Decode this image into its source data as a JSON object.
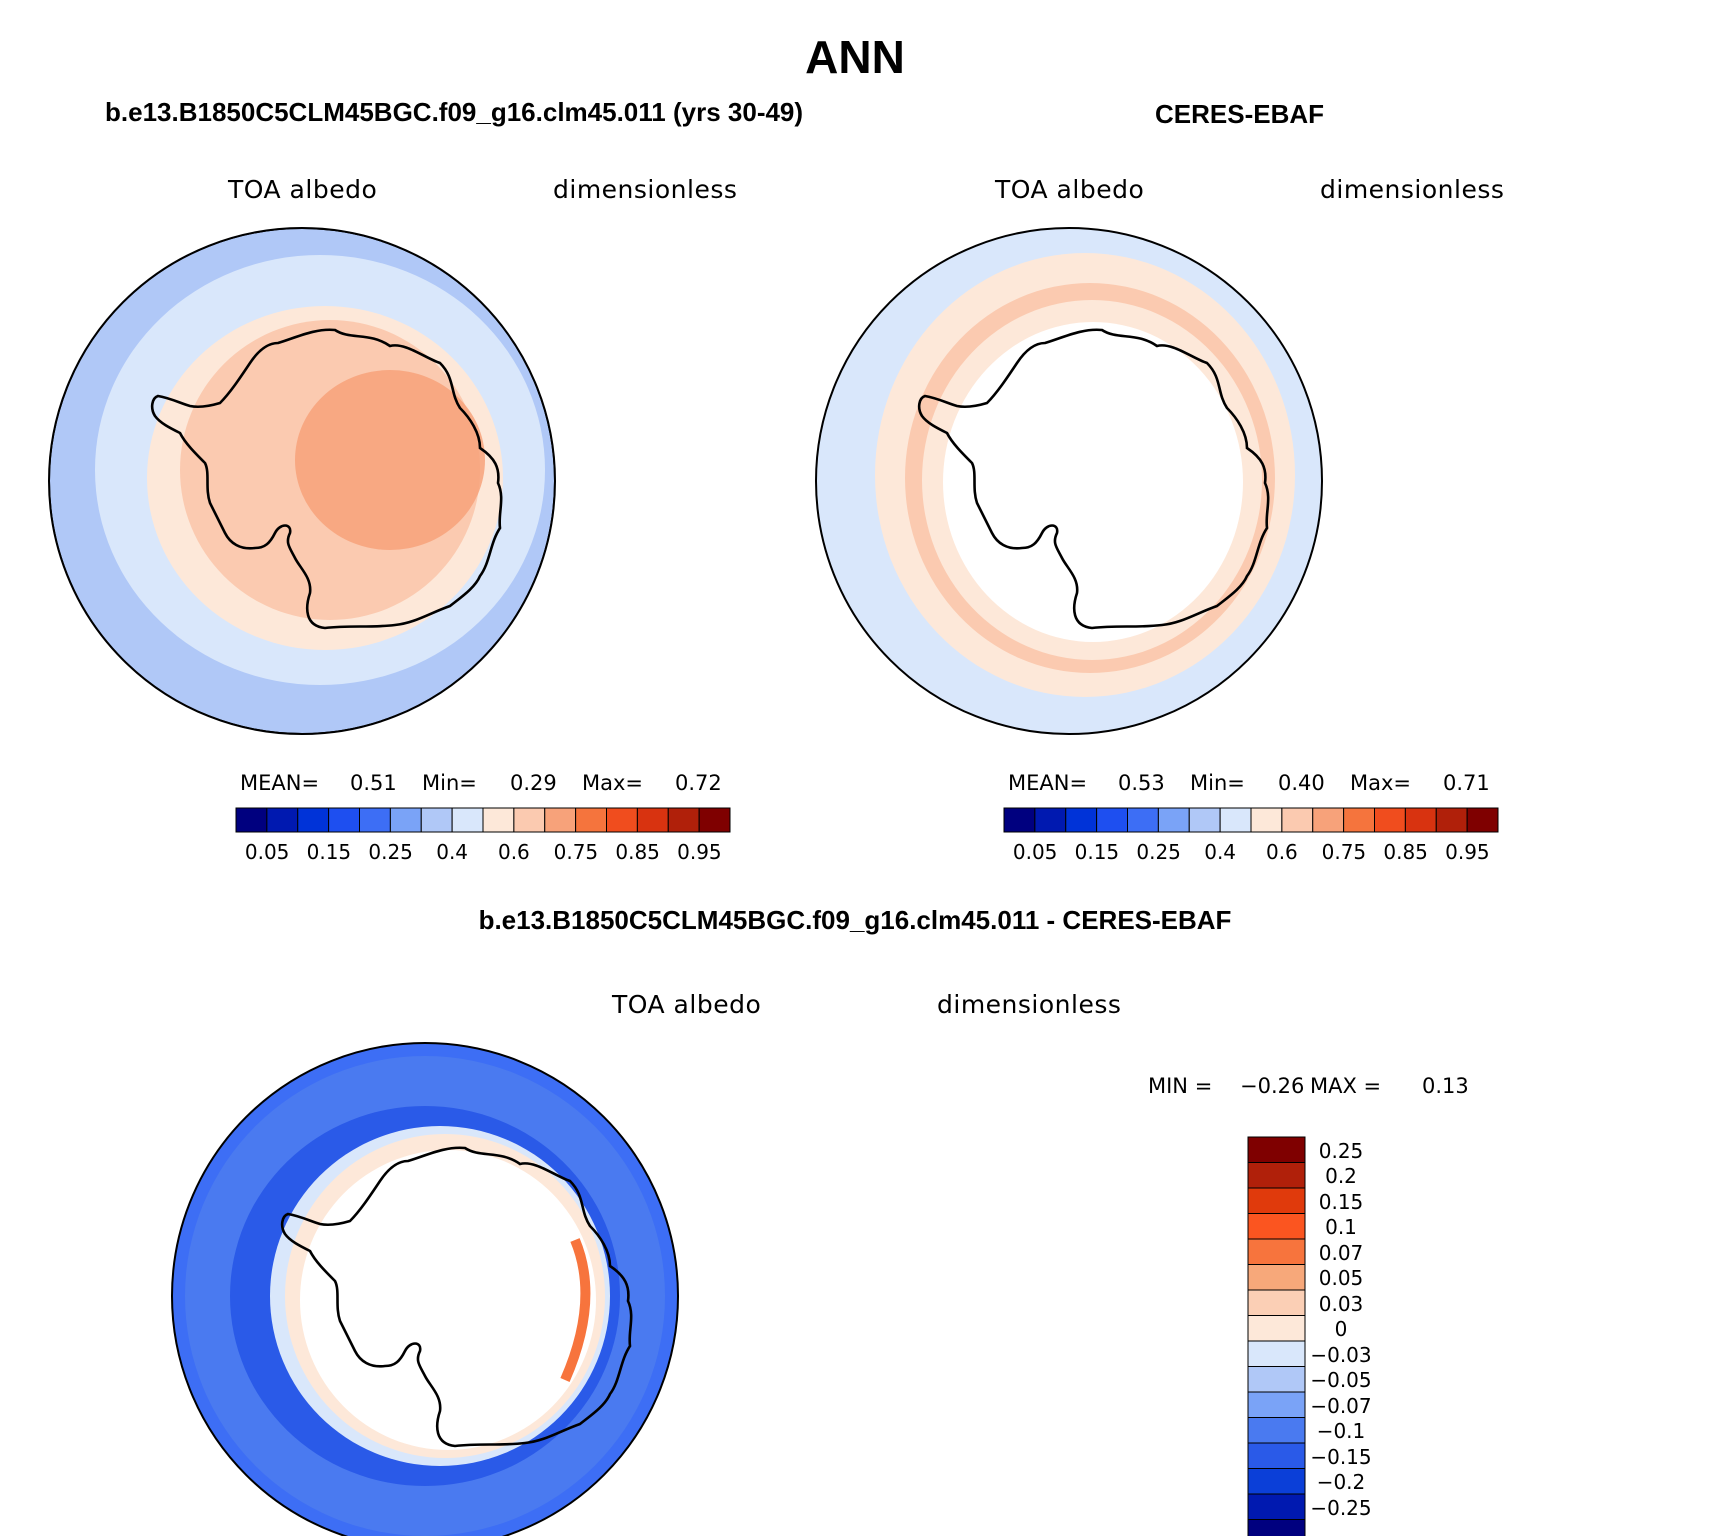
{
  "title": "ANN",
  "panels": [
    {
      "id": "model",
      "heading": "b.e13.B1850C5CLM45BGC.f09_g16.clm45.011 (yrs 30-49)",
      "variable": "TOA albedo",
      "units": "dimensionless",
      "stats": {
        "mean_label": "MEAN=",
        "mean": "0.51",
        "min_label": "Min=",
        "min": "0.29",
        "max_label": "Max=",
        "max": "0.72"
      }
    },
    {
      "id": "obs",
      "heading": "CERES-EBAF",
      "variable": "TOA albedo",
      "units": "dimensionless",
      "stats": {
        "mean_label": "MEAN=",
        "mean": "0.53",
        "min_label": "Min=",
        "min": "0.40",
        "max_label": "Max=",
        "max": "0.71"
      }
    }
  ],
  "diff_panel": {
    "heading": "b.e13.B1850C5CLM45BGC.f09_g16.clm45.011 - CERES-EBAF",
    "variable": "TOA albedo",
    "units": "dimensionless",
    "stats": {
      "min_label": "MIN =",
      "min": "−0.26",
      "max_label": "MAX =",
      "max": "0.13"
    }
  },
  "abs_colorbar": {
    "colors": [
      "#00007f",
      "#0019b0",
      "#0033d8",
      "#1e4ff0",
      "#3d6ef5",
      "#7aa3f7",
      "#b0c8f7",
      "#d9e7fb",
      "#fde8d9",
      "#fbcab0",
      "#f7a27a",
      "#f5743d",
      "#f04d1e",
      "#d83310",
      "#b0200a",
      "#7f0000"
    ],
    "tick_labels": [
      "0.05",
      "0.15",
      "0.25",
      "0.4",
      "0.6",
      "0.75",
      "0.85",
      "0.95"
    ]
  },
  "diff_colorbar": {
    "colors": [
      "#7f0000",
      "#b0200a",
      "#e03a0c",
      "#fb5520",
      "#f7743d",
      "#f7a87a",
      "#fbcfb5",
      "#fde8d9",
      "#d9e7fb",
      "#b0c8f7",
      "#7aa3f7",
      "#4a7af0",
      "#2a5ae8",
      "#0b3fd8",
      "#0019b0",
      "#00007f"
    ],
    "labels": [
      "0.25",
      "0.2",
      "0.15",
      "0.1",
      "0.07",
      "0.05",
      "0.03",
      "0",
      "−0.03",
      "−0.05",
      "−0.07",
      "−0.1",
      "−0.15",
      "−0.2",
      "−0.25"
    ]
  }
}
